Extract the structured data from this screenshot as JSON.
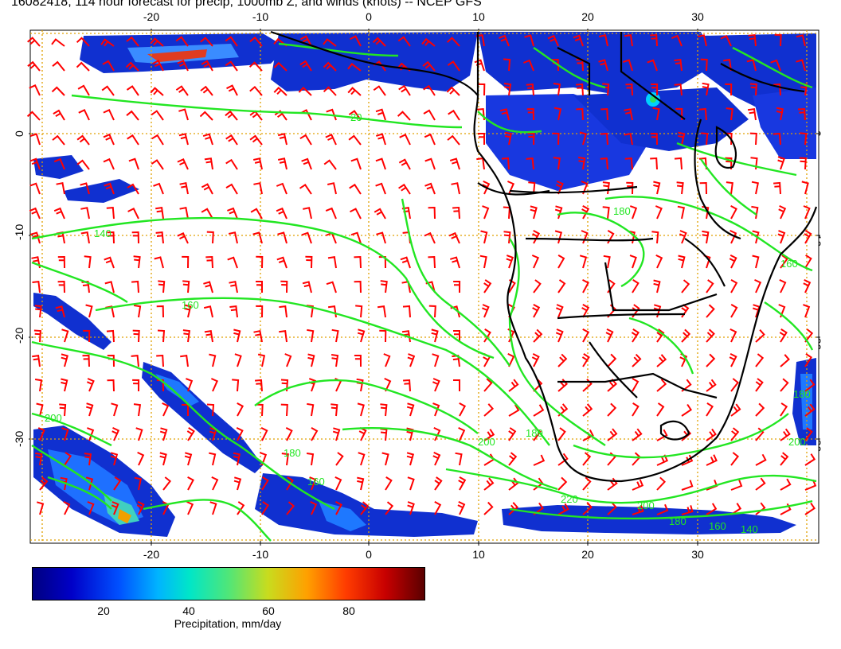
{
  "title": "16082418, 114 hour forecast for precip, 1000mb Z, and winds (knots) -- NCEP GFS",
  "axes": {
    "lon_ticks": [
      "-20",
      "-10",
      "0",
      "10",
      "20",
      "30"
    ],
    "lat_ticks": [
      "0",
      "-10",
      "-20",
      "-30"
    ]
  },
  "contour_labels": [
    "20",
    "140",
    "160",
    "180",
    "160",
    "180",
    "200",
    "220",
    "200",
    "180",
    "160",
    "140",
    "180",
    "200",
    "160",
    "180",
    "200"
  ],
  "colorbar": {
    "ticks": [
      "20",
      "40",
      "60",
      "80"
    ],
    "label": "Precipitation, mm/day",
    "range": [
      0,
      100
    ]
  },
  "colors": {
    "contour": "#22e622",
    "wind_barb": "#ff0000",
    "coastline": "#000000",
    "grid": "#e0a000",
    "precip_low": "#000080",
    "precip_high": "#5a0000"
  }
}
